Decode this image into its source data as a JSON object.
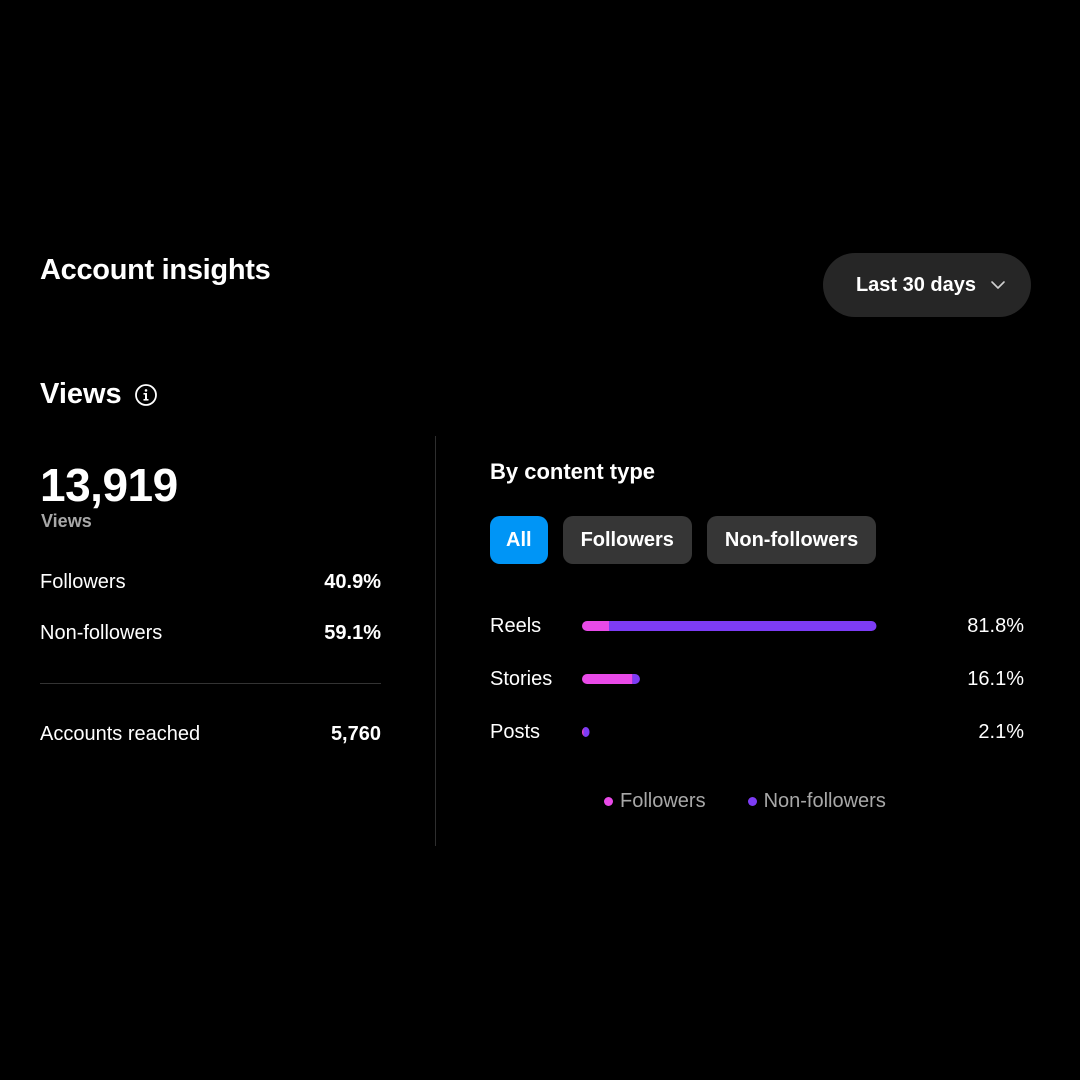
{
  "header": {
    "title": "Account insights",
    "range_label": "Last 30 days"
  },
  "views": {
    "title": "Views",
    "total": "13,919",
    "total_label": "Views",
    "rows": [
      {
        "label": "Followers",
        "value": "40.9%"
      },
      {
        "label": "Non-followers",
        "value": "59.1%"
      }
    ],
    "reached": {
      "label": "Accounts reached",
      "value": "5,760"
    }
  },
  "content_type": {
    "title": "By content type",
    "filters": [
      {
        "label": "All",
        "active": true
      },
      {
        "label": "Followers",
        "active": false
      },
      {
        "label": "Non-followers",
        "active": false
      }
    ],
    "legend": [
      {
        "label": "Followers",
        "color": "#e94ae8"
      },
      {
        "label": "Non-followers",
        "color": "#7d3cf5"
      }
    ]
  },
  "chart_data": {
    "type": "bar",
    "orientation": "horizontal",
    "stacked": true,
    "categories": [
      "Reels",
      "Stories",
      "Posts"
    ],
    "totals": [
      81.8,
      16.1,
      2.1
    ],
    "total_labels": [
      "81.8%",
      "16.1%",
      "2.1%"
    ],
    "series": [
      {
        "name": "Followers",
        "values": [
          7.5,
          14.0,
          0.5
        ]
      },
      {
        "name": "Non-followers",
        "values": [
          74.3,
          2.1,
          1.6
        ]
      }
    ],
    "colors": {
      "Followers": "#e94ae8",
      "Non-followers": "#7d3cf5"
    },
    "xlim": [
      0,
      100
    ],
    "legend_position": "bottom"
  },
  "icons": {
    "info": "info-icon",
    "dropdown": "chevron-down-icon"
  }
}
